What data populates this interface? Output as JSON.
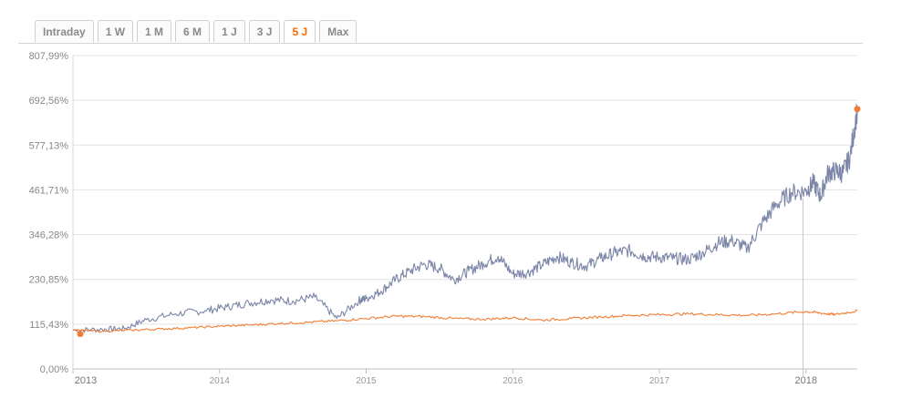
{
  "tabs": [
    {
      "label": "Intraday",
      "active": false
    },
    {
      "label": "1 W",
      "active": false
    },
    {
      "label": "1 M",
      "active": false
    },
    {
      "label": "6 M",
      "active": false
    },
    {
      "label": "1 J",
      "active": false
    },
    {
      "label": "3 J",
      "active": false
    },
    {
      "label": "5 J",
      "active": true
    },
    {
      "label": "Max",
      "active": false
    }
  ],
  "colors": {
    "series_main": "#7b86a8",
    "series_benchmark": "#f07d32",
    "active_tab": "#ff6600",
    "grid": "#e3e3e3"
  },
  "chart_data": {
    "type": "line",
    "title": "",
    "xlabel": "",
    "ylabel": "",
    "y_tick_labels": [
      "0,00%",
      "115,43%",
      "230,85%",
      "346,28%",
      "461,71%",
      "577,13%",
      "692,56%",
      "807,99%"
    ],
    "y_ticks": [
      0,
      115.43,
      230.85,
      346.28,
      461.71,
      577.13,
      692.56,
      807.99
    ],
    "ylim": [
      0,
      807.99
    ],
    "xlim": [
      2013.0,
      2018.35
    ],
    "x_ticks": [
      {
        "label": "2013",
        "x": 2013.0,
        "major": true
      },
      {
        "label": "2014",
        "x": 2014.0,
        "major": false
      },
      {
        "label": "2015",
        "x": 2015.0,
        "major": false
      },
      {
        "label": "2016",
        "x": 2016.0,
        "major": false
      },
      {
        "label": "2017",
        "x": 2017.0,
        "major": false
      },
      {
        "label": "2018",
        "x": 2018.0,
        "major": true
      }
    ],
    "grid": "horizontal",
    "crosshair_x": 2017.98,
    "series": [
      {
        "key": "main",
        "color": "#7b86a8",
        "x": [
          2013.0,
          2013.2,
          2013.35,
          2013.5,
          2013.7,
          2013.9,
          2014.05,
          2014.2,
          2014.35,
          2014.5,
          2014.65,
          2014.8,
          2014.95,
          2015.0,
          2015.1,
          2015.2,
          2015.3,
          2015.4,
          2015.5,
          2015.6,
          2015.7,
          2015.8,
          2015.9,
          2016.0,
          2016.1,
          2016.2,
          2016.3,
          2016.4,
          2016.5,
          2016.6,
          2016.7,
          2016.8,
          2016.9,
          2017.0,
          2017.1,
          2017.2,
          2017.3,
          2017.4,
          2017.5,
          2017.6,
          2017.7,
          2017.8,
          2017.9,
          2018.0,
          2018.05,
          2018.1,
          2018.15,
          2018.2,
          2018.25,
          2018.3,
          2018.35
        ],
        "y": [
          100,
          102,
          104,
          127,
          142,
          150,
          160,
          170,
          178,
          175,
          185,
          130,
          176,
          182,
          200,
          230,
          253,
          270,
          260,
          230,
          253,
          272,
          290,
          245,
          248,
          268,
          290,
          275,
          265,
          285,
          300,
          305,
          290,
          288,
          285,
          282,
          300,
          325,
          330,
          310,
          375,
          425,
          455,
          458,
          480,
          445,
          505,
          510,
          505,
          545,
          670
        ]
      },
      {
        "key": "benchmark",
        "color": "#f07d32",
        "x": [
          2013.0,
          2013.2,
          2013.4,
          2013.6,
          2013.8,
          2014.0,
          2014.2,
          2014.4,
          2014.6,
          2014.8,
          2015.0,
          2015.2,
          2015.4,
          2015.6,
          2015.8,
          2016.0,
          2016.2,
          2016.4,
          2016.6,
          2016.8,
          2017.0,
          2017.2,
          2017.4,
          2017.6,
          2017.8,
          2018.0,
          2018.1,
          2018.2,
          2018.35
        ],
        "y": [
          100,
          97,
          100,
          103,
          106,
          110,
          113,
          117,
          120,
          124,
          130,
          136,
          135,
          130,
          128,
          132,
          126,
          130,
          134,
          138,
          140,
          142,
          140,
          138,
          142,
          148,
          144,
          140,
          150
        ]
      }
    ],
    "markers": [
      {
        "series": "main",
        "x": 2018.35,
        "y": 670,
        "color": "#f07d32"
      },
      {
        "series": "benchmark",
        "x": 2013.05,
        "y": 90,
        "color": "#f07d32"
      }
    ]
  }
}
